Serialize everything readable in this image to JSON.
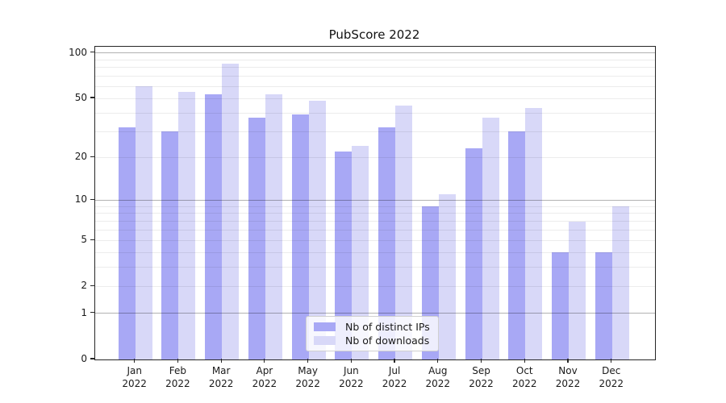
{
  "chart_data": {
    "type": "bar",
    "title": "PubScore 2022",
    "categories": [
      "Jan 2022",
      "Feb 2022",
      "Mar 2022",
      "Apr 2022",
      "May 2022",
      "Jun 2022",
      "Jul 2022",
      "Aug 2022",
      "Sep 2022",
      "Oct 2022",
      "Nov 2022",
      "Dec 2022"
    ],
    "series": [
      {
        "name": "Nb of distinct IPs",
        "color": "#a8a8f5",
        "values": [
          32,
          30,
          53,
          37,
          39,
          22,
          32,
          9,
          23,
          30,
          4,
          4
        ]
      },
      {
        "name": "Nb of downloads",
        "color": "#d8d8f8",
        "values": [
          60,
          55,
          85,
          53,
          48,
          24,
          45,
          11,
          37,
          43,
          7,
          9
        ]
      }
    ],
    "xlabel": "",
    "ylabel": "",
    "yscale": "log1p",
    "ylim": [
      0,
      110
    ],
    "y_ticks": [
      0,
      1,
      2,
      5,
      10,
      20,
      50,
      100
    ],
    "y_minor_gridlines": [
      3,
      4,
      6,
      7,
      8,
      9,
      30,
      40,
      60,
      70,
      80,
      90
    ],
    "grid": true,
    "legend_position": "lower center"
  },
  "colors": {
    "background": "#ffffff",
    "axis": "#262626",
    "text": "#1a1a1a",
    "minor_gridline": "rgba(0,0,0,0.075)",
    "decade_gridline": "rgba(0,0,0,0.30)"
  }
}
